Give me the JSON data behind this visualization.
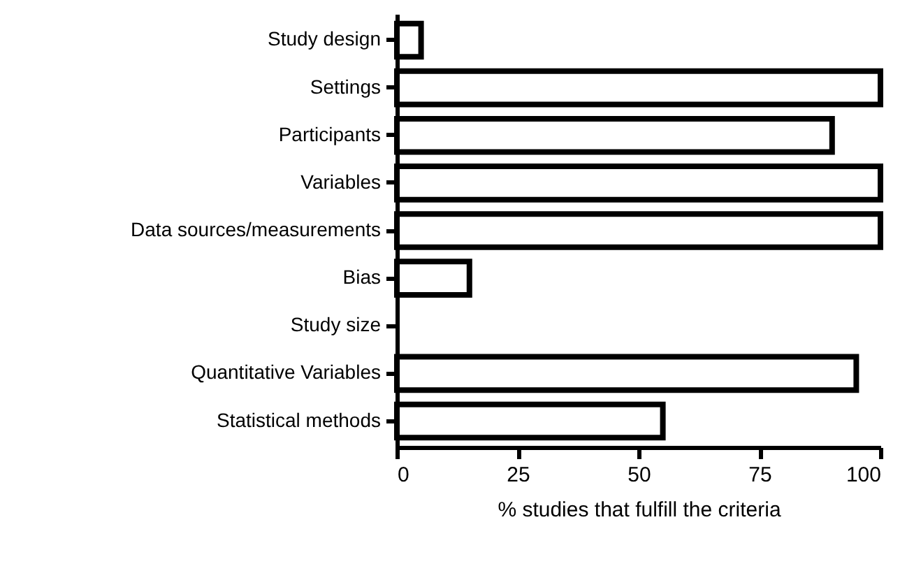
{
  "chart_data": {
    "type": "bar",
    "orientation": "horizontal",
    "xlabel": "% studies that fulfill the criteria",
    "categories": [
      "Study design",
      "Settings",
      "Participants",
      "Variables",
      "Data sources/measurements",
      "Bias",
      "Study size",
      "Quantitative Variables",
      "Statistical methods"
    ],
    "values": [
      5,
      100,
      90,
      100,
      100,
      15,
      0,
      95,
      55
    ],
    "color": "#ffffff",
    "xlim": [
      0,
      100
    ],
    "xticks": [
      0,
      25,
      50,
      75,
      100
    ],
    "grid": false
  }
}
